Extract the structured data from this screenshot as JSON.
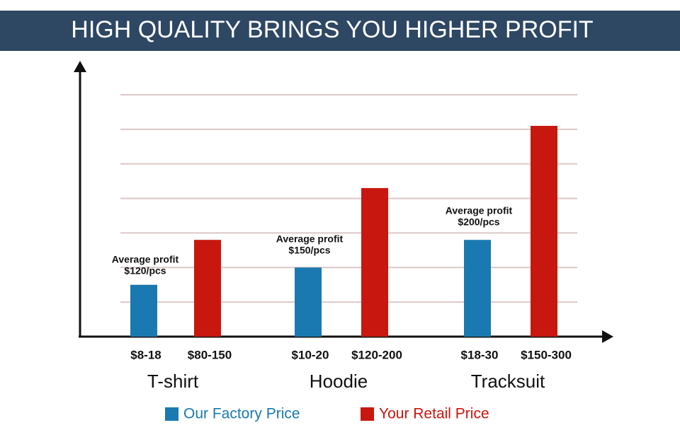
{
  "chart_data": {
    "type": "bar",
    "title": "HIGH QUALITY BRINGS YOU HIGHER PROFIT",
    "categories": [
      "T-shirt",
      "Hoodie",
      "Tracksuit"
    ],
    "series": [
      {
        "name": "Our Factory Price",
        "color": "#1a79b0",
        "values": [
          1.5,
          2.0,
          2.8
        ],
        "price_labels": [
          "$8-18",
          "$10-20",
          "$18-30"
        ]
      },
      {
        "name": "Your Retail Price",
        "color": "#c8170e",
        "values": [
          2.8,
          4.3,
          6.1
        ],
        "price_labels": [
          "$80-150",
          "$120-200",
          "$150-300"
        ]
      }
    ],
    "annotations": [
      [
        "Average profit",
        "$120/pcs"
      ],
      [
        "Average profit",
        "$150/pcs"
      ],
      [
        "Average profit",
        "$200/pcs"
      ]
    ],
    "ylim": [
      0,
      7
    ],
    "gridlines": [
      1,
      2,
      3,
      4,
      5,
      6,
      7
    ],
    "grid": true
  }
}
